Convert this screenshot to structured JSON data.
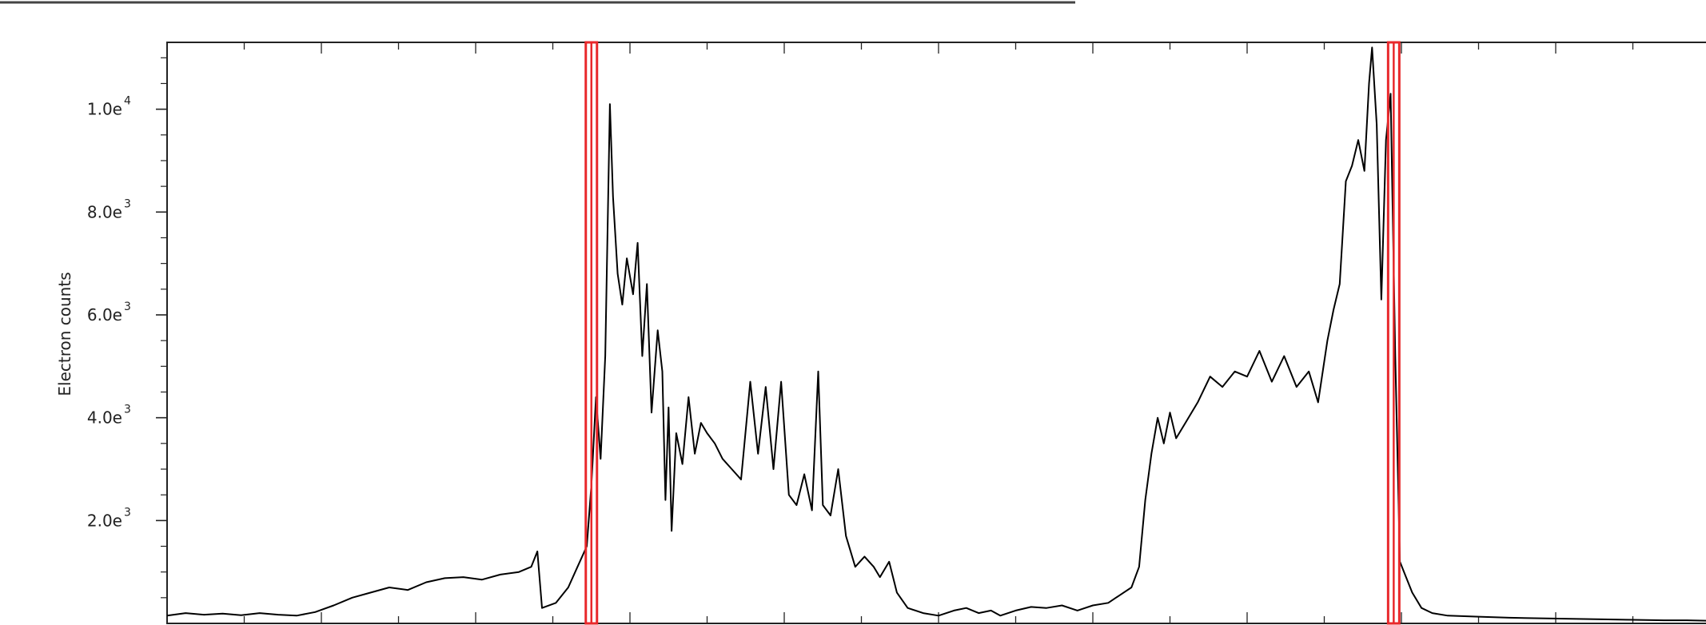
{
  "chart_data": {
    "type": "line",
    "title": "",
    "xlabel": "",
    "ylabel": "Electron counts",
    "ylim": [
      0,
      11300
    ],
    "xlim": [
      0,
      1000
    ],
    "grid": false,
    "y_ticks": [
      {
        "value": 2000,
        "mantissa": "2.0e",
        "exponent": "3"
      },
      {
        "value": 4000,
        "mantissa": "4.0e",
        "exponent": "3"
      },
      {
        "value": 6000,
        "mantissa": "6.0e",
        "exponent": "3"
      },
      {
        "value": 8000,
        "mantissa": "8.0e",
        "exponent": "3"
      },
      {
        "value": 10000,
        "mantissa": "1.0e",
        "exponent": "4"
      }
    ],
    "markers": [
      {
        "x": 275,
        "color": "#e8282b"
      },
      {
        "x": 795,
        "color": "#e8282b"
      }
    ],
    "series": [
      {
        "color": "#000000",
        "points": [
          [
            0,
            150
          ],
          [
            12,
            200
          ],
          [
            24,
            170
          ],
          [
            36,
            190
          ],
          [
            48,
            160
          ],
          [
            60,
            200
          ],
          [
            72,
            170
          ],
          [
            84,
            150
          ],
          [
            96,
            220
          ],
          [
            108,
            350
          ],
          [
            120,
            500
          ],
          [
            132,
            600
          ],
          [
            144,
            700
          ],
          [
            156,
            650
          ],
          [
            168,
            800
          ],
          [
            180,
            880
          ],
          [
            192,
            900
          ],
          [
            204,
            850
          ],
          [
            216,
            950
          ],
          [
            228,
            1000
          ],
          [
            236,
            1100
          ],
          [
            240,
            1400
          ],
          [
            243,
            300
          ],
          [
            252,
            400
          ],
          [
            260,
            700
          ],
          [
            266,
            1100
          ],
          [
            272,
            1500
          ],
          [
            275,
            2700
          ],
          [
            278,
            4400
          ],
          [
            281,
            3200
          ],
          [
            284,
            5200
          ],
          [
            287,
            10100
          ],
          [
            289,
            8300
          ],
          [
            292,
            6800
          ],
          [
            295,
            6200
          ],
          [
            298,
            7100
          ],
          [
            302,
            6400
          ],
          [
            305,
            7400
          ],
          [
            308,
            5200
          ],
          [
            311,
            6600
          ],
          [
            314,
            4100
          ],
          [
            318,
            5700
          ],
          [
            321,
            4900
          ],
          [
            323,
            2400
          ],
          [
            325,
            4200
          ],
          [
            327,
            1800
          ],
          [
            330,
            3700
          ],
          [
            334,
            3100
          ],
          [
            338,
            4400
          ],
          [
            342,
            3300
          ],
          [
            346,
            3900
          ],
          [
            350,
            3700
          ],
          [
            355,
            3500
          ],
          [
            360,
            3200
          ],
          [
            366,
            3000
          ],
          [
            372,
            2800
          ],
          [
            378,
            4700
          ],
          [
            383,
            3300
          ],
          [
            388,
            4600
          ],
          [
            393,
            3000
          ],
          [
            398,
            4700
          ],
          [
            403,
            2500
          ],
          [
            408,
            2300
          ],
          [
            413,
            2900
          ],
          [
            418,
            2200
          ],
          [
            422,
            4900
          ],
          [
            425,
            2300
          ],
          [
            430,
            2100
          ],
          [
            435,
            3000
          ],
          [
            440,
            1700
          ],
          [
            446,
            1100
          ],
          [
            452,
            1300
          ],
          [
            458,
            1100
          ],
          [
            462,
            900
          ],
          [
            468,
            1200
          ],
          [
            473,
            600
          ],
          [
            480,
            300
          ],
          [
            490,
            200
          ],
          [
            500,
            150
          ],
          [
            510,
            250
          ],
          [
            518,
            300
          ],
          [
            526,
            200
          ],
          [
            534,
            250
          ],
          [
            540,
            150
          ],
          [
            550,
            250
          ],
          [
            560,
            320
          ],
          [
            570,
            300
          ],
          [
            580,
            350
          ],
          [
            590,
            250
          ],
          [
            600,
            350
          ],
          [
            610,
            400
          ],
          [
            620,
            600
          ],
          [
            625,
            700
          ],
          [
            630,
            1100
          ],
          [
            634,
            2400
          ],
          [
            638,
            3300
          ],
          [
            642,
            4000
          ],
          [
            646,
            3500
          ],
          [
            650,
            4100
          ],
          [
            654,
            3600
          ],
          [
            660,
            3900
          ],
          [
            668,
            4300
          ],
          [
            676,
            4800
          ],
          [
            684,
            4600
          ],
          [
            692,
            4900
          ],
          [
            700,
            4800
          ],
          [
            708,
            5300
          ],
          [
            716,
            4700
          ],
          [
            724,
            5200
          ],
          [
            732,
            4600
          ],
          [
            740,
            4900
          ],
          [
            746,
            4300
          ],
          [
            752,
            5500
          ],
          [
            756,
            6100
          ],
          [
            760,
            6600
          ],
          [
            764,
            8600
          ],
          [
            768,
            8900
          ],
          [
            772,
            9400
          ],
          [
            776,
            8800
          ],
          [
            779,
            10500
          ],
          [
            781,
            11200
          ],
          [
            784,
            9700
          ],
          [
            787,
            6300
          ],
          [
            790,
            9400
          ],
          [
            793,
            10300
          ],
          [
            796,
            5200
          ],
          [
            799,
            1200
          ],
          [
            803,
            900
          ],
          [
            807,
            600
          ],
          [
            813,
            300
          ],
          [
            820,
            200
          ],
          [
            830,
            150
          ],
          [
            850,
            130
          ],
          [
            870,
            110
          ],
          [
            890,
            100
          ],
          [
            910,
            90
          ],
          [
            930,
            80
          ],
          [
            950,
            70
          ],
          [
            970,
            60
          ],
          [
            985,
            60
          ],
          [
            1000,
            50
          ]
        ]
      }
    ]
  }
}
